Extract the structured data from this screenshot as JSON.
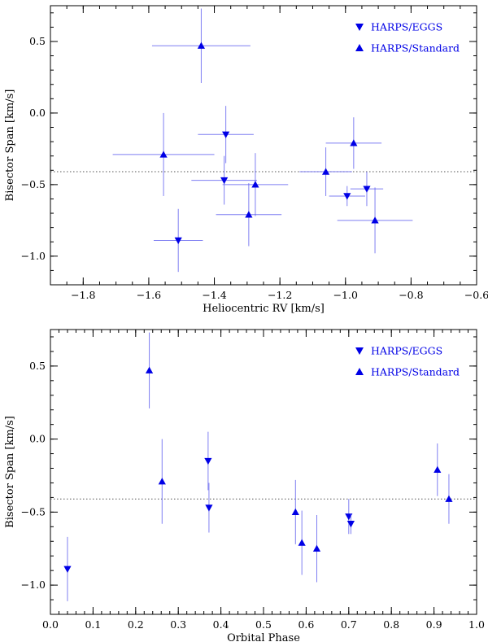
{
  "colors": {
    "marker": "#0000e6",
    "errorbar": "#5555ee",
    "axis": "#000000"
  },
  "reference_line": {
    "y": -0.41
  },
  "chart_data": [
    {
      "type": "scatter",
      "xlabel": "Heliocentric RV [km/s]",
      "ylabel": "Bisector Span [km/s]",
      "xlim": [
        -1.9,
        -0.6
      ],
      "ylim": [
        -1.2,
        0.75
      ],
      "xticks": [
        -1.8,
        -1.6,
        -1.4,
        -1.2,
        -1.0,
        -0.8,
        -0.6
      ],
      "xtick_labels": [
        "−1.8",
        "−1.6",
        "−1.4",
        "−1.2",
        "−1.0",
        "−0.8",
        "−0.6"
      ],
      "xminor_step": 0.05,
      "yticks": [
        0.5,
        0.0,
        -0.5,
        -1.0
      ],
      "ytick_labels": [
        "0.5",
        "0.0",
        "−0.5",
        "−1.0"
      ],
      "yminor_step": 0.1,
      "legend": [
        {
          "label": "HARPS/EGGS",
          "marker": "down"
        },
        {
          "label": "HARPS/Standard",
          "marker": "up"
        }
      ],
      "series": [
        {
          "name": "HARPS/EGGS",
          "marker": "down",
          "points": [
            {
              "x": -1.365,
              "y": -0.15,
              "xerr": 0.085,
              "yerr": 0.2
            },
            {
              "x": -1.37,
              "y": -0.47,
              "xerr": 0.1,
              "yerr": 0.17
            },
            {
              "x": -1.51,
              "y": -0.89,
              "xerr": 0.075,
              "yerr": 0.22
            },
            {
              "x": -0.995,
              "y": -0.58,
              "xerr": 0.055,
              "yerr": 0.07
            },
            {
              "x": -0.935,
              "y": -0.53,
              "xerr": 0.05,
              "yerr": 0.12
            }
          ]
        },
        {
          "name": "HARPS/Standard",
          "marker": "up",
          "points": [
            {
              "x": -1.44,
              "y": 0.47,
              "xerr": 0.15,
              "yerr": 0.26
            },
            {
              "x": -1.555,
              "y": -0.29,
              "xerr": 0.155,
              "yerr": 0.29
            },
            {
              "x": -1.275,
              "y": -0.5,
              "xerr": 0.1,
              "yerr": 0.22
            },
            {
              "x": -1.295,
              "y": -0.71,
              "xerr": 0.1,
              "yerr": 0.22
            },
            {
              "x": -1.06,
              "y": -0.41,
              "xerr": 0.08,
              "yerr": 0.17
            },
            {
              "x": -0.975,
              "y": -0.21,
              "xerr": 0.085,
              "yerr": 0.18
            },
            {
              "x": -0.91,
              "y": -0.75,
              "xerr": 0.115,
              "yerr": 0.23
            }
          ]
        }
      ]
    },
    {
      "type": "scatter",
      "xlabel": "Orbital Phase",
      "ylabel": "Bisector Span [km/s]",
      "xlim": [
        0.0,
        1.0
      ],
      "ylim": [
        -1.2,
        0.75
      ],
      "xticks": [
        0.0,
        0.1,
        0.2,
        0.3,
        0.4,
        0.5,
        0.6,
        0.7,
        0.8,
        0.9,
        1.0
      ],
      "xtick_labels": [
        "0.0",
        "0.1",
        "0.2",
        "0.3",
        "0.4",
        "0.5",
        "0.6",
        "0.7",
        "0.8",
        "0.9",
        "1.0"
      ],
      "xminor_step": 0.02,
      "yticks": [
        0.5,
        0.0,
        -0.5,
        -1.0
      ],
      "ytick_labels": [
        "0.5",
        "0.0",
        "−0.5",
        "−1.0"
      ],
      "yminor_step": 0.1,
      "legend": [
        {
          "label": "HARPS/EGGS",
          "marker": "down"
        },
        {
          "label": "HARPS/Standard",
          "marker": "up"
        }
      ],
      "series": [
        {
          "name": "HARPS/EGGS",
          "marker": "down",
          "points": [
            {
              "x": 0.04,
              "y": -0.89,
              "xerr": 0,
              "yerr": 0.22
            },
            {
              "x": 0.37,
              "y": -0.15,
              "xerr": 0,
              "yerr": 0.2
            },
            {
              "x": 0.372,
              "y": -0.47,
              "xerr": 0,
              "yerr": 0.17
            },
            {
              "x": 0.7,
              "y": -0.53,
              "xerr": 0,
              "yerr": 0.12
            },
            {
              "x": 0.705,
              "y": -0.58,
              "xerr": 0,
              "yerr": 0.07
            }
          ]
        },
        {
          "name": "HARPS/Standard",
          "marker": "up",
          "points": [
            {
              "x": 0.232,
              "y": 0.47,
              "xerr": 0,
              "yerr": 0.26
            },
            {
              "x": 0.262,
              "y": -0.29,
              "xerr": 0,
              "yerr": 0.29
            },
            {
              "x": 0.575,
              "y": -0.5,
              "xerr": 0,
              "yerr": 0.22
            },
            {
              "x": 0.59,
              "y": -0.71,
              "xerr": 0,
              "yerr": 0.22
            },
            {
              "x": 0.625,
              "y": -0.75,
              "xerr": 0,
              "yerr": 0.23
            },
            {
              "x": 0.908,
              "y": -0.21,
              "xerr": 0,
              "yerr": 0.18
            },
            {
              "x": 0.935,
              "y": -0.41,
              "xerr": 0,
              "yerr": 0.17
            }
          ]
        }
      ]
    }
  ]
}
